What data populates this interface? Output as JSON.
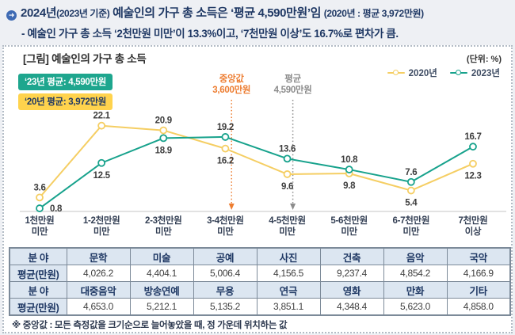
{
  "colors": {
    "navy": "#1F3864",
    "bullet_blue": "#3F6BB4",
    "series_2020": "#F5CE63",
    "series_2023": "#17A28C",
    "median_orange": "#ED7D31",
    "mean_gray": "#8C8C8C",
    "badge_teal_bg": "#1EA68E",
    "badge_yellow_bg": "#FFD34D",
    "table_header_bg": "#DCE6F1",
    "axis_gray": "#D9D9D9"
  },
  "header": {
    "bullet_icon": "➜",
    "title_part1": "2024년",
    "title_part2": "(2023년 기준)",
    "title_part3": " 예술인의 가구 총 소득은 ‘평균 4,590만원’임 ",
    "title_part4": "(2020년 : 평균 3,972만원)",
    "subtitle": "- 예술인 가구 총 소득 ‘2천만원 미만’이 13.3%이고, ‘7천만원 이상’도 16.7%로 편차가 큼."
  },
  "figure": {
    "title": "[그림] 예술인의 가구 총 소득",
    "unit_label": "(단위: %)"
  },
  "badges": {
    "avg_2023": {
      "text": "‘23년 평균: 4,590만원"
    },
    "avg_2020": {
      "text": "‘20년 평균: 3,972만원"
    }
  },
  "chart_data": {
    "type": "line",
    "unit": "%",
    "categories": [
      "1천만원 미만",
      "1-2천만원 미만",
      "2-3천만원 미만",
      "3-4천만원 미만",
      "4-5천만원 미만",
      "5-6천만원 미만",
      "6-7천만원 미만",
      "7천만원 이상"
    ],
    "category_lines": [
      [
        "1천만원",
        "미만"
      ],
      [
        "1-2천만원",
        "미만"
      ],
      [
        "2-3천만원",
        "미만"
      ],
      [
        "3-4천만원",
        "미만"
      ],
      [
        "4-5천만원",
        "미만"
      ],
      [
        "5-6천만원",
        "미만"
      ],
      [
        "6-7천만원",
        "미만"
      ],
      [
        "7천만원",
        "이상"
      ]
    ],
    "series": [
      {
        "name": "2020년",
        "color": "#F5CE63",
        "values": [
          3.6,
          22.1,
          20.9,
          16.2,
          9.6,
          9.8,
          5.4,
          12.3
        ]
      },
      {
        "name": "2023년",
        "color": "#17A28C",
        "values": [
          0.8,
          12.5,
          18.9,
          19.2,
          13.6,
          10.8,
          7.6,
          16.7
        ]
      }
    ],
    "annotations": [
      {
        "title": "중앙값",
        "value_label": "3,600만원",
        "value_manwon": 3600,
        "color": "#ED7D31"
      },
      {
        "title": "평균",
        "value_label": "4,590만원",
        "value_manwon": 4590,
        "color": "#8C8C8C"
      }
    ],
    "ylim": [
      0,
      24
    ],
    "grid": false,
    "legend_position": "top-right"
  },
  "table": {
    "rows": [
      {
        "header": true,
        "label": "분 야",
        "cells": [
          "문학",
          "미술",
          "공예",
          "사진",
          "건축",
          "음악",
          "국악"
        ]
      },
      {
        "header": false,
        "label": "평균(만원)",
        "cells": [
          "4,026.2",
          "4,404.1",
          "5,006.4",
          "4,156.5",
          "9,237.4",
          "4,854.2",
          "4,166.9"
        ]
      },
      {
        "header": true,
        "label": "분 야",
        "cells": [
          "대중음악",
          "방송연예",
          "무용",
          "연극",
          "영화",
          "만화",
          "기타"
        ]
      },
      {
        "header": false,
        "label": "평균(만원)",
        "cells": [
          "4,653.0",
          "5,212.1",
          "5,135.2",
          "3,851.1",
          "4,348.4",
          "5,623.0",
          "4,858.0"
        ]
      }
    ]
  },
  "footnote": "※ 중앙값 : 모든 측정값을 크기순으로 늘어놓았을 때, 정 가운데 위치하는 값"
}
